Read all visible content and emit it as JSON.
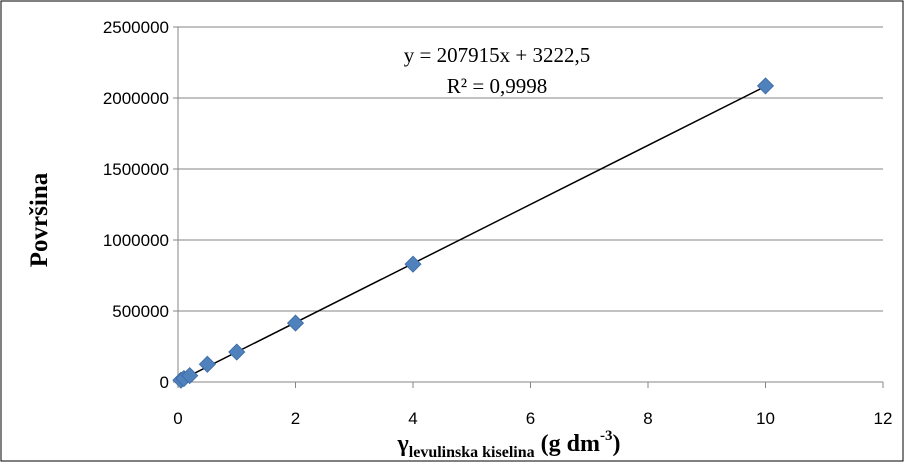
{
  "chart_data": {
    "type": "scatter",
    "x": [
      0.05,
      0.1,
      0.2,
      0.5,
      1,
      2,
      4,
      10
    ],
    "y": [
      13000,
      24000,
      45000,
      125000,
      211000,
      415000,
      830000,
      2085000
    ],
    "xlim": [
      0,
      12
    ],
    "ylim": [
      0,
      2500000
    ],
    "xticks": [
      "0",
      "2",
      "4",
      "6",
      "8",
      "10",
      "12"
    ],
    "yticks": [
      "0",
      "500000",
      "1000000",
      "1500000",
      "2000000",
      "2500000"
    ],
    "ylabel": "Površina",
    "xlabel": {
      "symbol": "γ",
      "subscript": "levulinska kiselina",
      "unit_open": " (g dm",
      "unit_sup": "-3",
      "unit_close": ")"
    },
    "trendline": {
      "slope": 207915,
      "intercept": 3222.5,
      "equation": "y = 207915x + 3222,5",
      "r2": "R² = 0,9998",
      "color": "#000000"
    },
    "marker_color": "#4f81bd",
    "grid": "horizontal"
  }
}
